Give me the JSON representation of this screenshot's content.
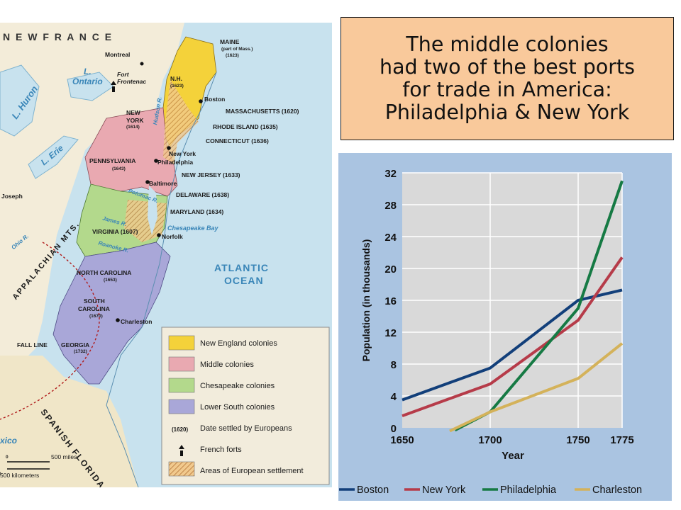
{
  "slide": {
    "title_lines": [
      "The middle colonies",
      "had two of the best ports",
      "for trade in America:",
      "Philadelphia & New York"
    ]
  },
  "map": {
    "header": "N E W   F R A N C E",
    "cities": {
      "montreal": "Montreal",
      "fort_frontenac": "Fort\nFrontenac",
      "boston": "Boston",
      "new_york": "New York",
      "philadelphia": "Philadelphia",
      "baltimore": "Baltimore",
      "norfolk": "Norfolk",
      "charleston": "Charleston",
      "joseph": "Joseph"
    },
    "colonies": {
      "maine": "MAINE",
      "maine_note": "(part of Mass.)",
      "maine_year": "(1623)",
      "nh": "N.H.",
      "nh_year": "(1623)",
      "massachusetts": "MASSACHUSETTS (1620)",
      "rhode_island": "RHODE ISLAND (1635)",
      "connecticut": "CONNECTICUT (1636)",
      "new_york_col": "NEW",
      "new_york_col2": "YORK",
      "new_york_year": "(1614)",
      "pennsylvania": "PENNSYLVANIA",
      "pennsylvania_year": "(1643)",
      "new_jersey": "NEW JERSEY (1633)",
      "delaware": "DELAWARE (1638)",
      "maryland": "MARYLAND (1634)",
      "virginia": "VIRGINIA (1607)",
      "north_carolina": "NORTH CAROLINA",
      "north_carolina_year": "(1653)",
      "south_carolina": "SOUTH",
      "south_carolina2": "CAROLINA",
      "south_carolina_year": "(1670)",
      "georgia": "GEORGIA",
      "georgia_year": "(1732)",
      "spanish_florida": "SPANISH FLORIDA",
      "mexico": "xico"
    },
    "water": {
      "l_ontario": "L.\nOntario",
      "l_huron": "L. Huron",
      "l_erie": "L. Erie",
      "hudson_r": "Hudson R.",
      "potomac_r": "Potomac R.",
      "james_r": "James R.",
      "roanoke_r": "Roanoke R.",
      "ohio_r": "Ohio R.",
      "chesapeake_bay": "Chesapeake Bay",
      "atlantic": "ATLANTIC",
      "ocean": "OCEAN"
    },
    "terrain": {
      "appalachian": "APPALACHIAN MTS.",
      "fall_line": "FALL LINE"
    },
    "scale": {
      "miles": "500 miles",
      "km": "500 kilometers",
      "zero_a": "0",
      "zero_b": "0"
    },
    "legend": [
      {
        "label": "New England colonies",
        "color": "#f4d23a"
      },
      {
        "label": "Middle colonies",
        "color": "#e9a9b1"
      },
      {
        "label": "Chesapeake colonies",
        "color": "#b3d98c"
      },
      {
        "label": "Lower South colonies",
        "color": "#a9a7d8"
      },
      {
        "label": "Date settled by Europeans",
        "sample": "(1620)"
      },
      {
        "label": "French forts",
        "sample": "fort-icon"
      },
      {
        "label": "Areas of European settlement",
        "sample": "hatch"
      }
    ]
  },
  "chart_data": {
    "type": "line",
    "title": "",
    "xlabel": "Year",
    "ylabel": "Population (in thousands)",
    "xlim": [
      1650,
      1775
    ],
    "ylim": [
      0,
      32
    ],
    "x_ticks": [
      1650,
      1700,
      1750,
      1775
    ],
    "y_ticks": [
      0,
      4,
      8,
      12,
      16,
      20,
      24,
      28,
      32
    ],
    "grid": true,
    "legend_position": "bottom",
    "series": [
      {
        "name": "Boston",
        "color": "#123f7a",
        "points": [
          [
            1650,
            3.5
          ],
          [
            1700,
            7.5
          ],
          [
            1750,
            16
          ],
          [
            1775,
            17.3
          ]
        ]
      },
      {
        "name": "New York",
        "color": "#b63b49",
        "points": [
          [
            1650,
            1.5
          ],
          [
            1700,
            5.5
          ],
          [
            1750,
            13.5
          ],
          [
            1775,
            21.4
          ]
        ]
      },
      {
        "name": "Philadelphia",
        "color": "#167a44",
        "points": [
          [
            1680,
            -0.3
          ],
          [
            1700,
            2
          ],
          [
            1750,
            15
          ],
          [
            1775,
            31
          ]
        ]
      },
      {
        "name": "Charleston",
        "color": "#d4b25a",
        "points": [
          [
            1677,
            -0.4
          ],
          [
            1700,
            2
          ],
          [
            1750,
            6.2
          ],
          [
            1775,
            10.6
          ]
        ]
      }
    ]
  }
}
